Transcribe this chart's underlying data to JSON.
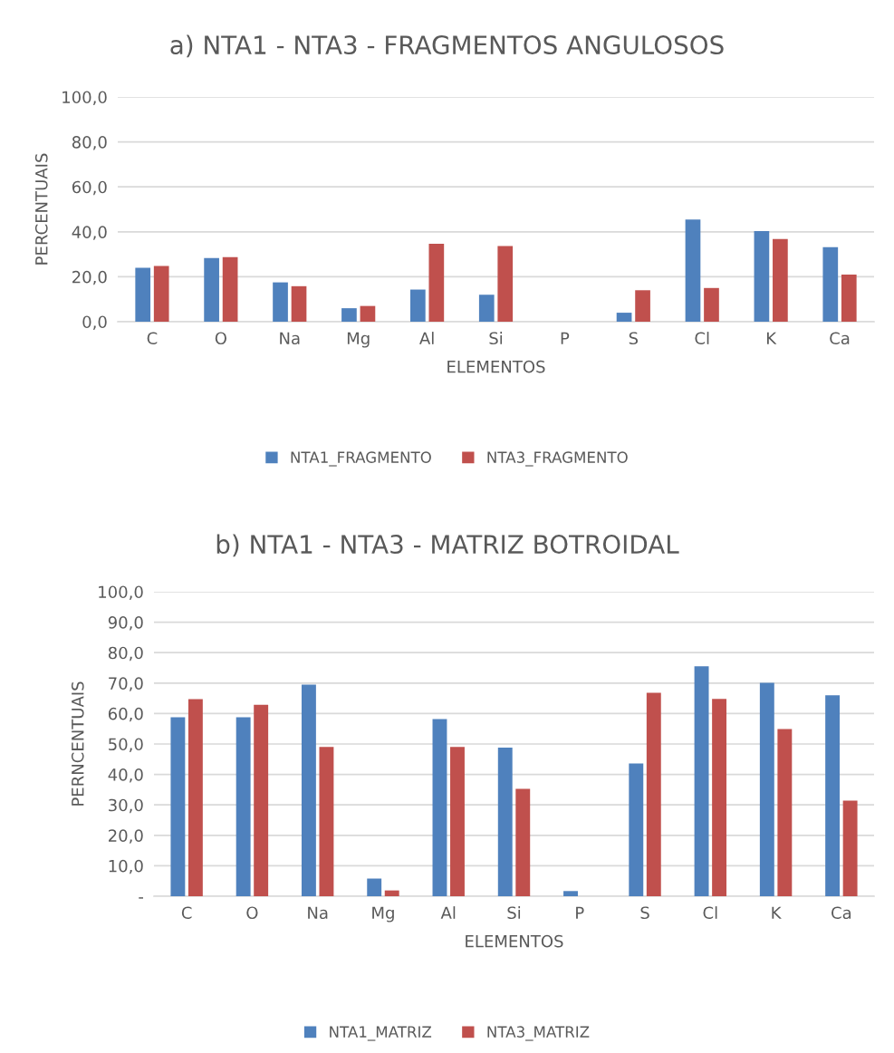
{
  "chart_data": [
    {
      "type": "bar",
      "title": "a) NTA1 - NTA3 - FRAGMENTOS ANGULOSOS",
      "xlabel": "ELEMENTOS",
      "ylabel": "PERCENTUAIS",
      "categories": [
        "C",
        "O",
        "Na",
        "Mg",
        "Al",
        "Si",
        "P",
        "S",
        "Cl",
        "K",
        "Ca"
      ],
      "series": [
        {
          "name": "NTA1_FRAGMENTO",
          "color": "#4f81bd",
          "values": [
            24,
            28.3,
            17.5,
            6,
            14.3,
            12,
            0,
            4,
            45.5,
            40.3,
            33.2
          ]
        },
        {
          "name": "NTA3_FRAGMENTO",
          "color": "#c0504d",
          "values": [
            24.8,
            28.7,
            15.8,
            7,
            34.7,
            33.7,
            0,
            14,
            15,
            36.8,
            21
          ]
        }
      ],
      "ylim": [
        0,
        100
      ],
      "yticks": [
        {
          "value": 0,
          "label": "0,0"
        },
        {
          "value": 20,
          "label": "20,0"
        },
        {
          "value": 40,
          "label": "40,0"
        },
        {
          "value": 60,
          "label": "60,0"
        },
        {
          "value": 80,
          "label": "80,0"
        },
        {
          "value": 100,
          "label": "100,0"
        }
      ],
      "grid": "y",
      "legend": "bottom"
    },
    {
      "type": "bar",
      "title": "b) NTA1 - NTA3 - MATRIZ BOTROIDAL",
      "xlabel": "ELEMENTOS",
      "ylabel": "PERNCENTUAIS",
      "categories": [
        "C",
        "O",
        "Na",
        "Mg",
        "Al",
        "Si",
        "P",
        "S",
        "Cl",
        "K",
        "Ca"
      ],
      "series": [
        {
          "name": "NTA1_MATRIZ",
          "color": "#4f81bd",
          "values": [
            58.8,
            58.8,
            69.5,
            5.8,
            58.2,
            48.8,
            1.7,
            43.6,
            75.5,
            70.1,
            66
          ]
        },
        {
          "name": "NTA3_MATRIZ",
          "color": "#c0504d",
          "values": [
            64.7,
            62.9,
            49,
            1.9,
            49,
            35.3,
            0,
            66.8,
            64.8,
            54.9,
            31.4
          ]
        }
      ],
      "ylim": [
        0,
        100
      ],
      "yticks": [
        {
          "value": 0,
          "label": "-"
        },
        {
          "value": 10,
          "label": "10,0"
        },
        {
          "value": 20,
          "label": "20,0"
        },
        {
          "value": 30,
          "label": "30,0"
        },
        {
          "value": 40,
          "label": "40,0"
        },
        {
          "value": 50,
          "label": "50,0"
        },
        {
          "value": 60,
          "label": "60,0"
        },
        {
          "value": 70,
          "label": "70,0"
        },
        {
          "value": 80,
          "label": "80,0"
        },
        {
          "value": 90,
          "label": "90,0"
        },
        {
          "value": 100,
          "label": "100,0"
        }
      ],
      "grid": "y",
      "legend": "bottom"
    }
  ]
}
